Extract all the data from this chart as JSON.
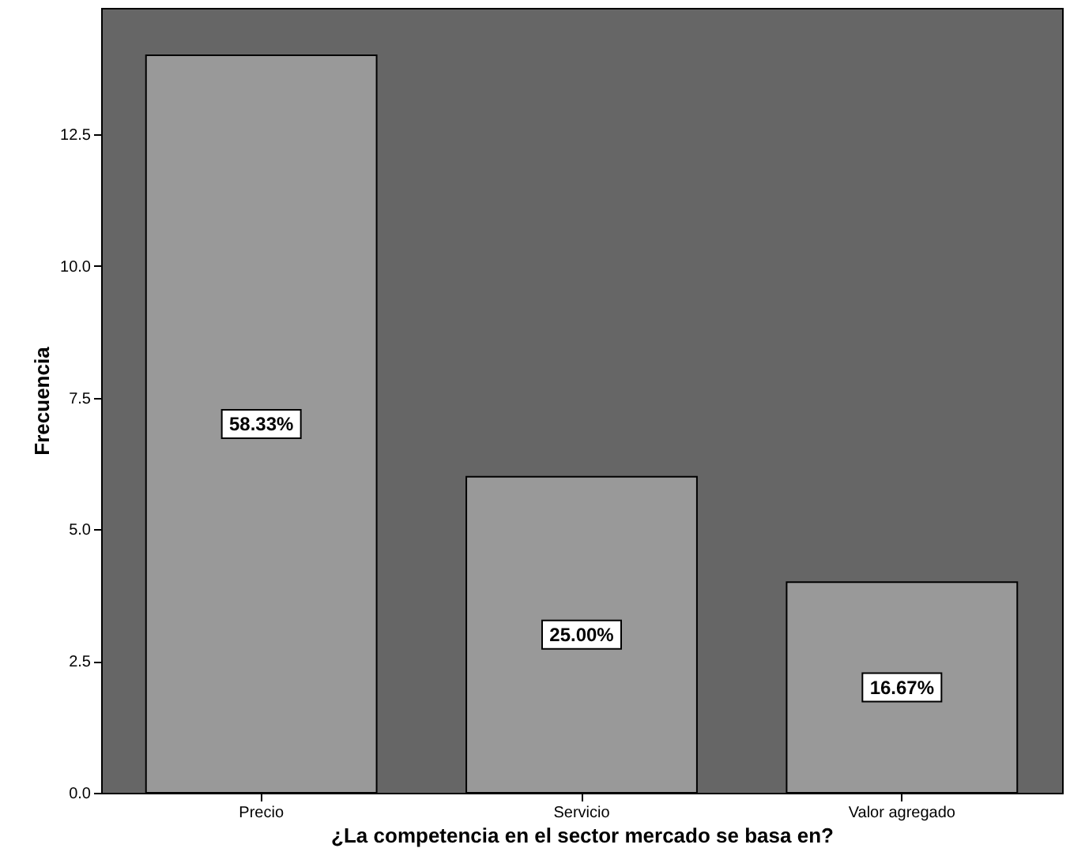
{
  "chart_data": {
    "type": "bar",
    "xlabel": "¿La competencia en el sector mercado se basa en?",
    "ylabel": "Frecuencia",
    "categories": [
      "Precio",
      "Servicio",
      "Valor agregado"
    ],
    "values": [
      14,
      6,
      4
    ],
    "color": "#999999",
    "annotations": [
      "58.33%",
      "25.00%",
      "16.67%"
    ],
    "ylim": [
      0,
      14.9
    ],
    "yticks": [
      {
        "value": 0,
        "label": "0.0"
      },
      {
        "value": 2.5,
        "label": "2.5"
      },
      {
        "value": 5,
        "label": "5.0"
      },
      {
        "value": 7.5,
        "label": "7.5"
      },
      {
        "value": 10,
        "label": "10.0"
      },
      {
        "value": 12.5,
        "label": "12.5"
      }
    ],
    "grid": false
  }
}
